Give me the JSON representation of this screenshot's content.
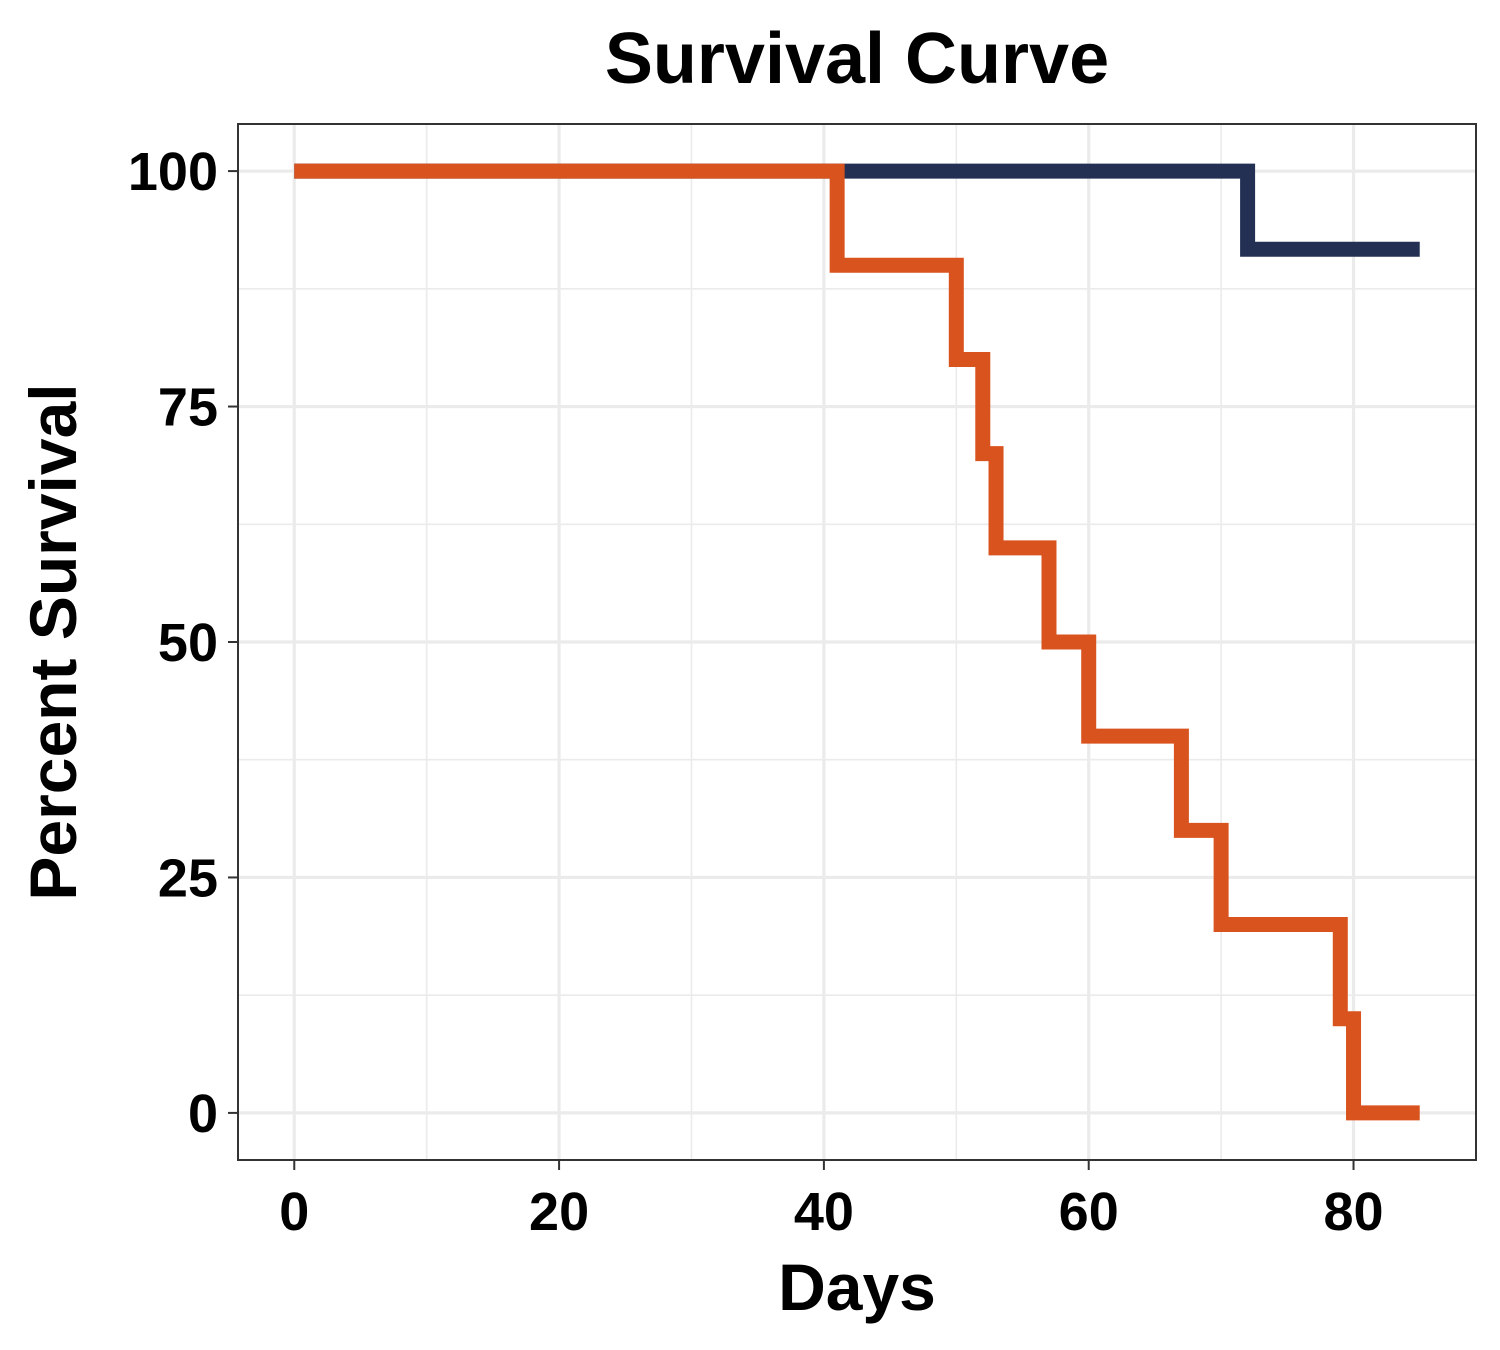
{
  "chart_data": {
    "type": "line",
    "step": true,
    "title": "Survival Curve",
    "xlabel": "Days",
    "ylabel": "Percent Survival",
    "xlim": [
      -4.25,
      89.25
    ],
    "ylim": [
      -5,
      105
    ],
    "x_ticks": [
      0,
      20,
      40,
      60,
      80
    ],
    "y_ticks": [
      0,
      25,
      50,
      75,
      100
    ],
    "x_minor": [
      10,
      30,
      50,
      70
    ],
    "y_minor": [
      12.5,
      37.5,
      62.5,
      87.5
    ],
    "grid": true,
    "legend": "none",
    "series": [
      {
        "color": "#232f53",
        "x": [
          0,
          72,
          85
        ],
        "y": [
          100,
          91.7,
          91.7
        ]
      },
      {
        "color": "#d9531e",
        "x": [
          0,
          41,
          50,
          52,
          53,
          57,
          60,
          67,
          70,
          79,
          80,
          85
        ],
        "y": [
          100,
          90,
          80,
          70,
          60,
          50,
          40,
          30,
          20,
          10,
          0,
          0
        ]
      }
    ]
  }
}
